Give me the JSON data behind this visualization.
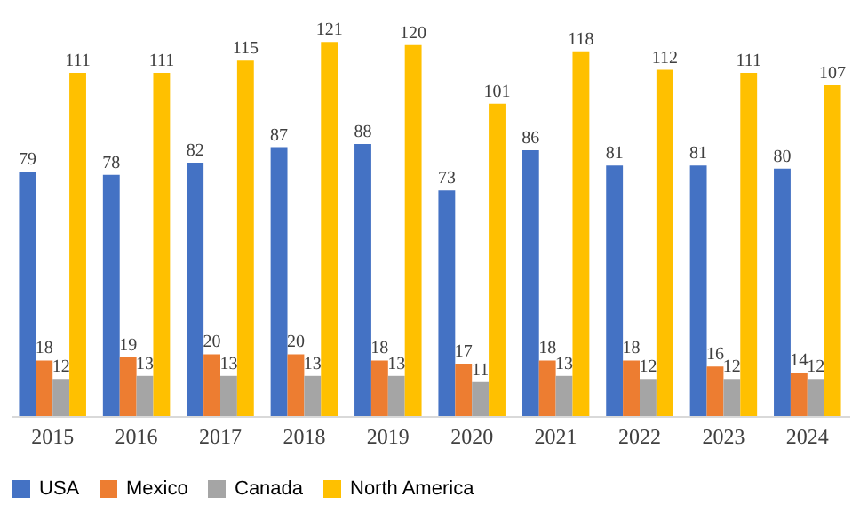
{
  "chart_data": {
    "type": "bar",
    "data_labels": true,
    "legend": "bottom",
    "grid": false,
    "categories": [
      "2015",
      "2016",
      "2017",
      "2018",
      "2019",
      "2020",
      "2021",
      "2022",
      "2023",
      "2024"
    ],
    "series": [
      {
        "name": "USA",
        "color": "#4472c4",
        "values": [
          79,
          78,
          82,
          87,
          88,
          73,
          86,
          81,
          81,
          80
        ]
      },
      {
        "name": "Mexico",
        "color": "#ed7d31",
        "values": [
          18,
          19,
          20,
          20,
          18,
          17,
          18,
          18,
          16,
          14
        ]
      },
      {
        "name": "Canada",
        "color": "#a5a5a5",
        "values": [
          12,
          13,
          13,
          13,
          13,
          11,
          13,
          12,
          12,
          12
        ]
      },
      {
        "name": "North America",
        "color": "#ffc000",
        "values": [
          111,
          111,
          115,
          121,
          120,
          101,
          118,
          112,
          111,
          107
        ]
      }
    ]
  }
}
